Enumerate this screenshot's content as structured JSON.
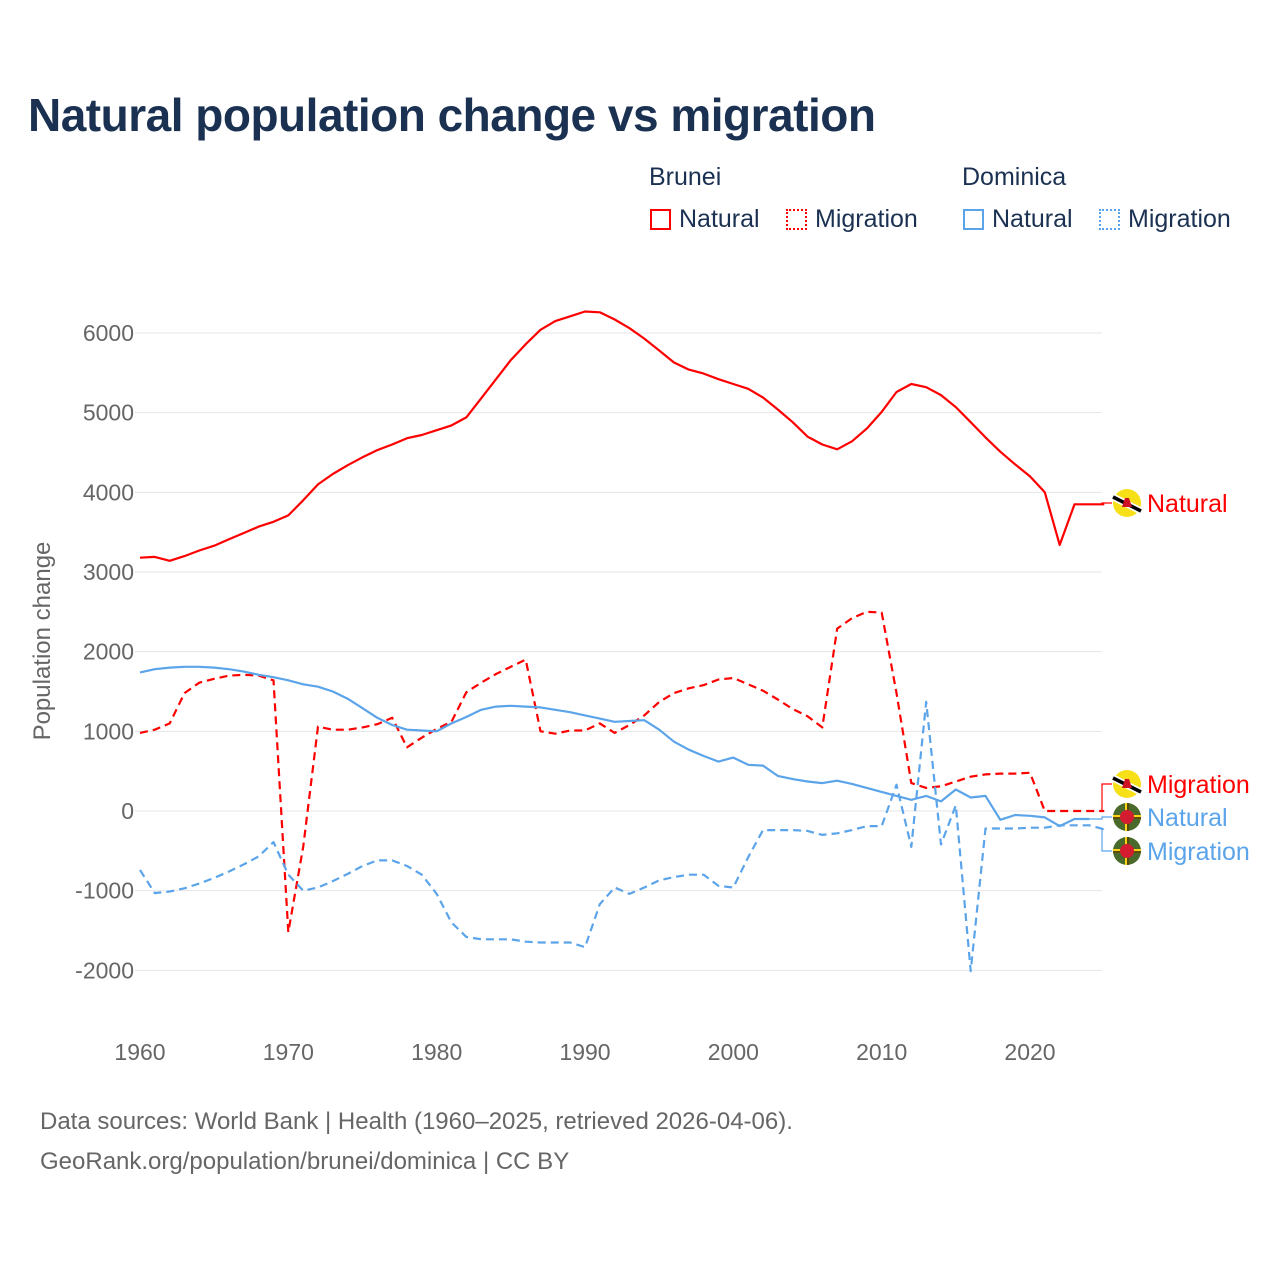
{
  "title": "Natural population change vs migration",
  "legend": {
    "groups": [
      {
        "name": "Brunei",
        "items": [
          "Natural",
          "Migration"
        ]
      },
      {
        "name": "Dominica",
        "items": [
          "Natural",
          "Migration"
        ]
      }
    ]
  },
  "colors": {
    "brunei": "#ff0000",
    "dominica": "#5ba4ea",
    "title": "#1b3152",
    "axis_text": "#666666",
    "grid": "#e6e6e6"
  },
  "footer": {
    "line1": "Data sources: World Bank | Health (1960–2025, retrieved 2026-04-06).",
    "line2": "GeoRank.org/population/brunei/dominica | CC BY"
  },
  "chart_data": {
    "type": "line",
    "title": "Natural population change vs migration",
    "xlabel": "",
    "ylabel": "Population change",
    "xlim": [
      1960,
      2025
    ],
    "ylim": [
      -2000,
      6000
    ],
    "x_ticks": [
      "1960",
      "1970",
      "1980",
      "1990",
      "2000",
      "2010",
      "2020"
    ],
    "y_ticks": [
      "-2000",
      "-1000",
      "0",
      "1000",
      "2000",
      "3000",
      "4000",
      "5000",
      "6000"
    ],
    "grid": true,
    "legend_position": "top-right",
    "series": [
      {
        "name": "Brunei Natural",
        "country": "Brunei",
        "label": "Natural",
        "color": "#ff0000",
        "dash": false,
        "start_year": 1960,
        "values": [
          3180,
          3190,
          3140,
          3200,
          3270,
          3330,
          3410,
          3490,
          3570,
          3630,
          3710,
          3900,
          4100,
          4230,
          4340,
          4440,
          4530,
          4600,
          4680,
          4720,
          4780,
          4840,
          4940,
          5180,
          5420,
          5660,
          5860,
          6040,
          6150,
          6210,
          6270,
          6260,
          6170,
          6060,
          5930,
          5780,
          5630,
          5540,
          5490,
          5420,
          5360,
          5300,
          5190,
          5040,
          4880,
          4700,
          4600,
          4540,
          4640,
          4800,
          5010,
          5260,
          5360,
          5320,
          5220,
          5070,
          4880,
          4690,
          4510,
          4350,
          4200,
          4000,
          3340,
          3850,
          3850,
          3850
        ]
      },
      {
        "name": "Brunei Migration",
        "country": "Brunei",
        "label": "Migration",
        "color": "#ff0000",
        "dash": true,
        "start_year": 1960,
        "values": [
          980,
          1020,
          1100,
          1480,
          1610,
          1660,
          1700,
          1710,
          1700,
          1640,
          -1520,
          -450,
          1060,
          1020,
          1020,
          1050,
          1090,
          1170,
          800,
          920,
          1030,
          1120,
          1490,
          1610,
          1720,
          1810,
          1900,
          1000,
          970,
          1010,
          1010,
          1100,
          980,
          1080,
          1200,
          1370,
          1480,
          1540,
          1580,
          1650,
          1670,
          1590,
          1510,
          1400,
          1280,
          1190,
          1050,
          2290,
          2420,
          2500,
          2490,
          1480,
          350,
          290,
          310,
          370,
          430,
          460,
          470,
          470,
          480,
          0,
          0,
          0,
          0,
          0
        ]
      },
      {
        "name": "Dominica Natural",
        "country": "Dominica",
        "label": "Natural",
        "color": "#5ba4ea",
        "dash": false,
        "start_year": 1960,
        "values": [
          1740,
          1780,
          1800,
          1810,
          1810,
          1800,
          1780,
          1750,
          1710,
          1680,
          1640,
          1590,
          1560,
          1500,
          1410,
          1290,
          1170,
          1080,
          1020,
          1010,
          1000,
          1100,
          1180,
          1270,
          1310,
          1320,
          1310,
          1300,
          1270,
          1240,
          1200,
          1160,
          1120,
          1130,
          1140,
          1020,
          870,
          770,
          690,
          620,
          670,
          580,
          570,
          440,
          400,
          370,
          350,
          380,
          340,
          290,
          240,
          190,
          140,
          190,
          120,
          270,
          170,
          190,
          -110,
          -50,
          -60,
          -80,
          -190,
          -100,
          -100
        ]
      },
      {
        "name": "Dominica Migration",
        "country": "Dominica",
        "label": "Migration",
        "color": "#5ba4ea",
        "dash": true,
        "start_year": 1960,
        "values": [
          -740,
          -1030,
          -1010,
          -970,
          -910,
          -840,
          -760,
          -670,
          -570,
          -390,
          -800,
          -1000,
          -960,
          -880,
          -790,
          -690,
          -620,
          -620,
          -690,
          -800,
          -1040,
          -1400,
          -1580,
          -1610,
          -1610,
          -1610,
          -1640,
          -1650,
          -1650,
          -1650,
          -1710,
          -1170,
          -960,
          -1040,
          -960,
          -870,
          -830,
          -800,
          -800,
          -940,
          -960,
          -580,
          -240,
          -240,
          -240,
          -250,
          -300,
          -280,
          -240,
          -190,
          -190,
          330,
          -450,
          1370,
          -420,
          70,
          -2010,
          -220,
          -220,
          -220,
          -210,
          -210,
          -180,
          -180,
          -180,
          -230
        ]
      }
    ]
  }
}
